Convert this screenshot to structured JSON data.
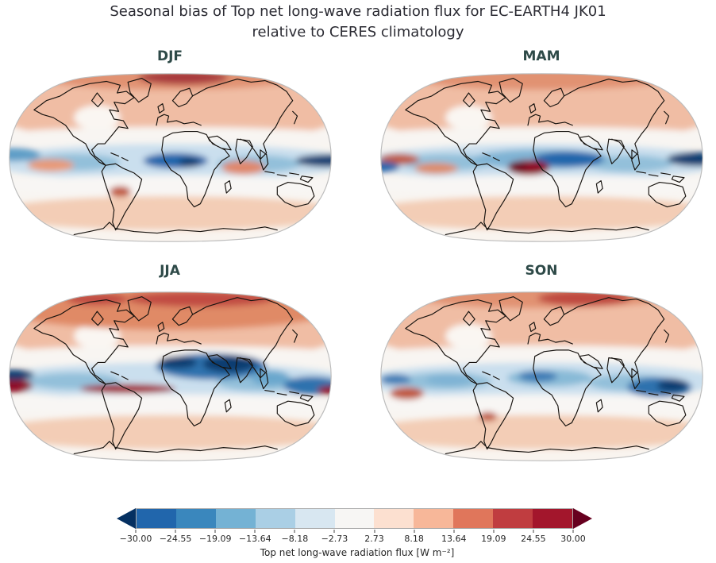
{
  "figure": {
    "title_line1": "Seasonal bias of Top net long-wave radiation flux for EC-EARTH4 JK01",
    "title_line2": "relative to CERES climatology"
  },
  "panels": [
    {
      "label": "DJF"
    },
    {
      "label": "MAM"
    },
    {
      "label": "JJA"
    },
    {
      "label": "SON"
    }
  ],
  "colorbar": {
    "label": "Top net long-wave radiation flux [W m⁻²]",
    "tick_labels": [
      "−30.00",
      "−24.55",
      "−19.09",
      "−13.64",
      "−8.18",
      "−2.73",
      "2.73",
      "8.18",
      "13.64",
      "19.09",
      "24.55",
      "30.00"
    ],
    "segment_colors": [
      "#2166ac",
      "#3a87bd",
      "#74b2d4",
      "#aacfe5",
      "#d8e7f1",
      "#f7f6f4",
      "#fce0d0",
      "#f7b799",
      "#e0765b",
      "#c03d40",
      "#a3162c"
    ],
    "under_color": "#053061",
    "over_color": "#67001f",
    "outline_color": "#ababab"
  },
  "chart_data": {
    "type": "heatmap",
    "subtype": "seasonal bias filled-contour world maps",
    "projection": "Robinson",
    "title": "Seasonal bias of Top net long-wave radiation flux for EC-EARTH4 JK01 relative to CERES climatology",
    "model": "EC-EARTH4 JK01",
    "reference": "CERES climatology",
    "variable": "Top net long-wave radiation flux",
    "units": "W m⁻²",
    "panels": [
      "DJF",
      "MAM",
      "JJA",
      "SON"
    ],
    "colormap": "RdBu_r (blue = negative bias, red = positive bias)",
    "extend": "both",
    "levels": [
      -30.0,
      -24.55,
      -19.09,
      -13.64,
      -8.18,
      -2.73,
      2.73,
      8.18,
      13.64,
      19.09,
      24.55,
      30.0
    ],
    "value_range": [
      -30,
      30
    ],
    "legend_position": "bottom",
    "notable_features": {
      "DJF": "Positive bias over NH continents and Arctic (dark red over Barents/Scandinavia); negative bias band along tropics, strongest over equatorial Africa/Atlantic and the west Pacific dateline",
      "MAM": "Strong dark-red positive bias over the equatorial Atlantic off Brazil; broad tropical negative band; dark negative bias over the west Pacific",
      "JJA": "Strong positive bias across NH high latitudes; strong negative bias over Sahel, Arabia and India; dark-red positive band along the equatorial east Pacific and Atlantic",
      "SON": "Moderate positive bias over NH continents with red maximum over Siberia; tropical negative band strongest around the Maritime Continent"
    }
  }
}
